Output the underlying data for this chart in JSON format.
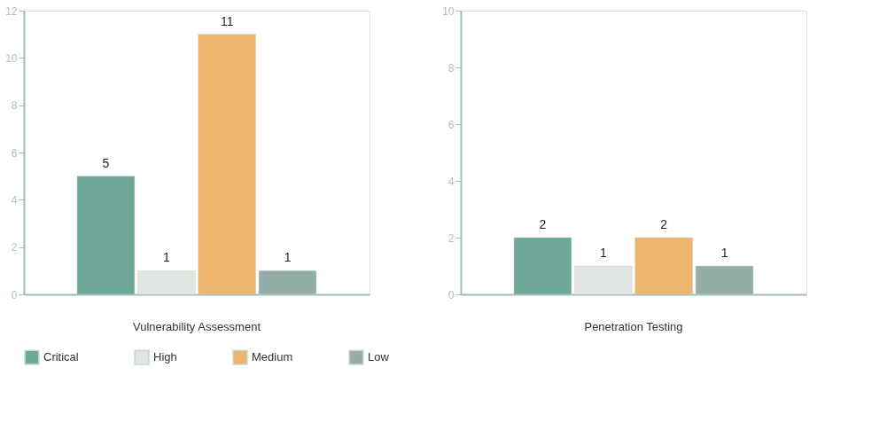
{
  "chart_data": [
    {
      "type": "bar",
      "categories": [
        "Vulnerability Assessment"
      ],
      "series": [
        {
          "name": "Critical",
          "color": "#6fa898",
          "values": [
            5
          ]
        },
        {
          "name": "High",
          "color": "#e0e6e2",
          "values": [
            1
          ]
        },
        {
          "name": "Medium",
          "color": "#eeb56e",
          "values": [
            11
          ]
        },
        {
          "name": "Low",
          "color": "#93aea6",
          "values": [
            1
          ]
        }
      ],
      "ylim": [
        0,
        12
      ],
      "yticks": [
        0,
        2,
        4,
        6,
        8,
        10,
        12
      ],
      "data_labels": true,
      "grid": false,
      "legend": "bottom"
    },
    {
      "type": "bar",
      "categories": [
        "Penetration Testing"
      ],
      "series": [
        {
          "name": "Critical",
          "color": "#6fa898",
          "values": [
            2
          ]
        },
        {
          "name": "High",
          "color": "#e0e6e2",
          "values": [
            1
          ]
        },
        {
          "name": "Medium",
          "color": "#eeb56e",
          "values": [
            2
          ]
        },
        {
          "name": "Low",
          "color": "#93aea6",
          "values": [
            1
          ]
        }
      ],
      "ylim": [
        0,
        10
      ],
      "yticks": [
        0,
        2,
        4,
        6,
        8,
        10
      ],
      "data_labels": true,
      "grid": false
    }
  ]
}
